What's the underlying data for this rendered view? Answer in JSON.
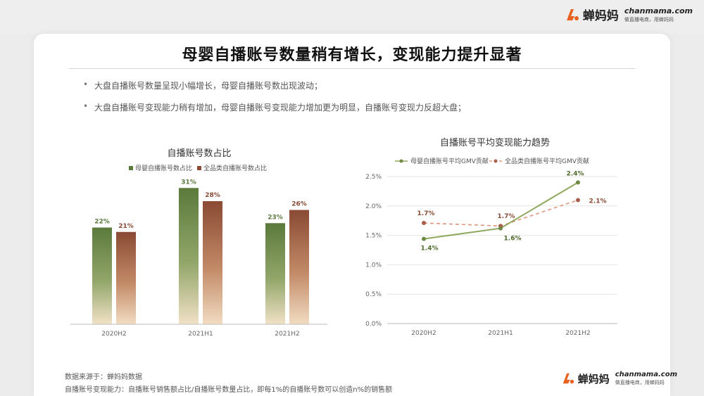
{
  "brand": {
    "name": "蝉妈妈",
    "domain": "chanmama.com",
    "slogan": "做直播电商，用蝉妈妈",
    "color": "#e8611f"
  },
  "title": "母婴自播账号数量稍有增长，变现能力提升显著",
  "bullets": [
    "大盘自播账号数量呈现小幅增长，母婴自播账号数出现波动；",
    "大盘自播账号变现能力稍有增加，母婴自播账号变现能力增加更为明显，自播账号变现力反超大盘；"
  ],
  "chart_data": [
    {
      "type": "bar",
      "title": "自播账号数占比",
      "categories": [
        "2020H2",
        "2021H1",
        "2021H2"
      ],
      "series": [
        {
          "name": "母婴自播账号数占比",
          "values": [
            22,
            31,
            23
          ],
          "labels": [
            "22%",
            "31%",
            "23%"
          ],
          "color": "#5b7a3b"
        },
        {
          "name": "全品类自播账号数占比",
          "values": [
            21,
            28,
            26
          ],
          "labels": [
            "21%",
            "28%",
            "26%"
          ],
          "color": "#8a4a34"
        }
      ],
      "ylim": [
        0,
        40
      ],
      "legend": "top",
      "grid": false
    },
    {
      "type": "line",
      "title": "自播账号平均变现能力趋势",
      "categories": [
        "2020H2",
        "2021H1",
        "2021H2"
      ],
      "series": [
        {
          "name": "母婴自播账号平均GMV贡献",
          "values": [
            1.44,
            1.62,
            2.4
          ],
          "labels": [
            "1.4%",
            "1.6%",
            "2.4%"
          ],
          "color": "#8fa85e",
          "style": "solid"
        },
        {
          "name": "全品类自播账号平均GMV贡献",
          "values": [
            1.71,
            1.66,
            2.1
          ],
          "labels": [
            "1.7%",
            "1.7%",
            "2.1%"
          ],
          "color": "#e0967a",
          "style": "dashed"
        }
      ],
      "yticks": [
        "0.0%",
        "0.5%",
        "1.0%",
        "1.5%",
        "2.0%",
        "2.5%"
      ],
      "ylim": [
        0,
        2.5
      ],
      "legend": "top",
      "grid": true
    }
  ],
  "footnotes": [
    "数据来源于：蝉妈妈数据",
    "自播账号变现能力：自播账号销售额占比/自播账号数量占比，即每1%的自播账号数可以创造n%的销售额"
  ]
}
